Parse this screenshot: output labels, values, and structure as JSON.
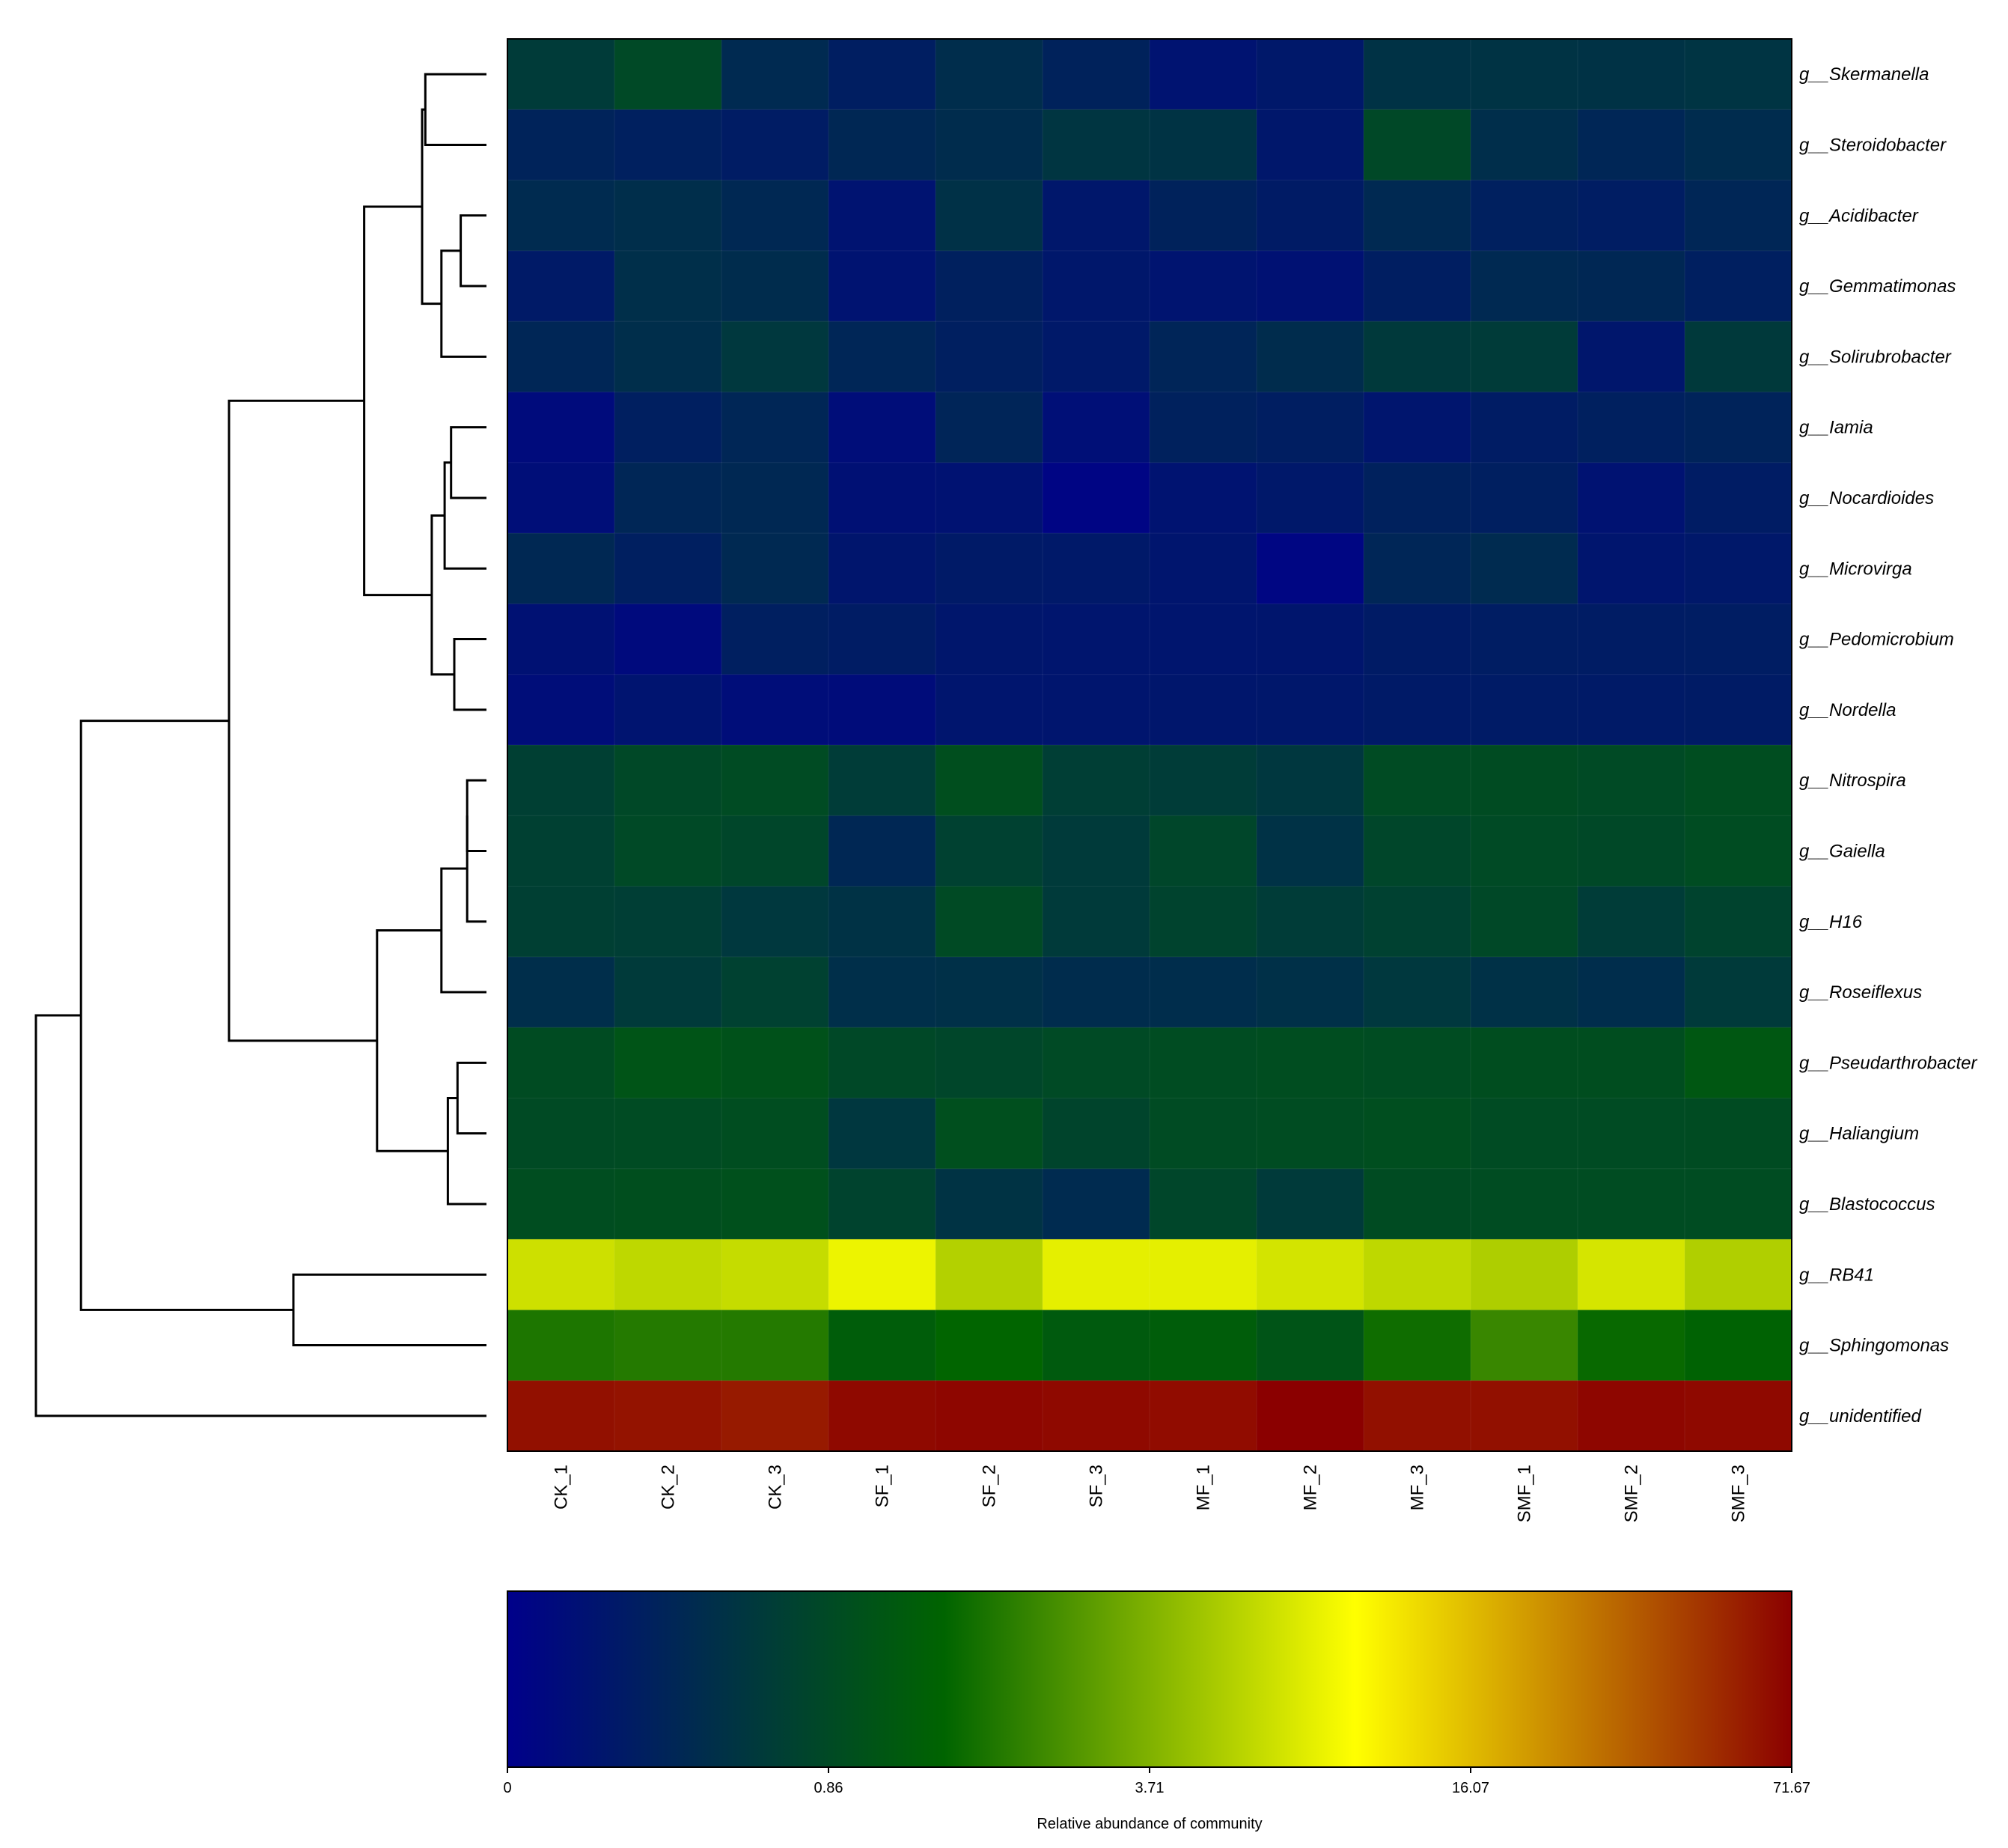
{
  "chart_data": {
    "type": "heatmap",
    "columns": [
      "CK_1",
      "CK_2",
      "CK_3",
      "SF_1",
      "SF_2",
      "SF_3",
      "MF_1",
      "MF_2",
      "MF_3",
      "SMF_1",
      "SMF_2",
      "SMF_3"
    ],
    "rows": [
      "g__Skermanella",
      "g__Steroidobacter",
      "g__Acidibacter",
      "g__Gemmatimonas",
      "g__Solirubrobacter",
      "g__Iamia",
      "g__Nocardioides",
      "g__Microvirga",
      "g__Pedomicrobium",
      "g__Nordella",
      "g__Nitrospira",
      "g__Gaiella",
      "g__H16",
      "g__Roseiflexus",
      "g__Pseudarthrobacter",
      "g__Haliangium",
      "g__Blastococcus",
      "g__RB41",
      "g__Sphingomonas",
      "g__unidentified"
    ],
    "values": [
      [
        0.69,
        0.85,
        0.49,
        0.35,
        0.53,
        0.4,
        0.22,
        0.28,
        0.59,
        0.6,
        0.59,
        0.61
      ],
      [
        0.41,
        0.37,
        0.33,
        0.46,
        0.52,
        0.62,
        0.6,
        0.27,
        0.84,
        0.54,
        0.45,
        0.51
      ],
      [
        0.5,
        0.54,
        0.47,
        0.22,
        0.57,
        0.27,
        0.4,
        0.32,
        0.48,
        0.37,
        0.34,
        0.45
      ],
      [
        0.3,
        0.55,
        0.52,
        0.22,
        0.38,
        0.27,
        0.23,
        0.2,
        0.35,
        0.48,
        0.46,
        0.36
      ],
      [
        0.45,
        0.54,
        0.65,
        0.44,
        0.36,
        0.29,
        0.43,
        0.52,
        0.67,
        0.69,
        0.26,
        0.67
      ],
      [
        0.13,
        0.36,
        0.45,
        0.15,
        0.43,
        0.17,
        0.39,
        0.35,
        0.24,
        0.33,
        0.37,
        0.41
      ],
      [
        0.16,
        0.45,
        0.47,
        0.19,
        0.21,
        0.06,
        0.22,
        0.28,
        0.39,
        0.36,
        0.21,
        0.33
      ],
      [
        0.47,
        0.36,
        0.48,
        0.25,
        0.3,
        0.29,
        0.24,
        0.07,
        0.44,
        0.5,
        0.24,
        0.28
      ],
      [
        0.2,
        0.12,
        0.36,
        0.33,
        0.26,
        0.24,
        0.24,
        0.25,
        0.32,
        0.34,
        0.33,
        0.34
      ],
      [
        0.15,
        0.23,
        0.15,
        0.14,
        0.24,
        0.24,
        0.26,
        0.27,
        0.3,
        0.31,
        0.3,
        0.32
      ],
      [
        0.74,
        0.84,
        0.9,
        0.7,
        1.05,
        0.72,
        0.7,
        0.64,
        0.9,
        0.93,
        0.86,
        0.98
      ],
      [
        0.75,
        0.85,
        0.82,
        0.46,
        0.76,
        0.68,
        0.82,
        0.58,
        0.82,
        0.86,
        0.84,
        0.95
      ],
      [
        0.74,
        0.72,
        0.65,
        0.59,
        0.88,
        0.68,
        0.78,
        0.7,
        0.76,
        0.84,
        0.7,
        0.78
      ],
      [
        0.54,
        0.68,
        0.76,
        0.55,
        0.56,
        0.52,
        0.53,
        0.56,
        0.65,
        0.57,
        0.53,
        0.68
      ],
      [
        0.93,
        1.25,
        1.15,
        0.84,
        0.82,
        0.86,
        0.95,
        1.0,
        0.95,
        1.01,
        1.01,
        1.38
      ],
      [
        0.88,
        0.9,
        0.98,
        0.64,
        1.06,
        0.8,
        0.9,
        0.95,
        1.03,
        0.9,
        0.92,
        0.93
      ],
      [
        0.98,
        1.05,
        1.1,
        0.78,
        0.6,
        0.5,
        0.82,
        0.68,
        0.93,
        0.95,
        0.95,
        0.95
      ],
      [
        8.5,
        7.6,
        8.0,
        10.5,
        6.9,
        10.0,
        10.0,
        8.9,
        7.6,
        6.6,
        9.0,
        6.7
      ],
      [
        2.3,
        2.4,
        2.4,
        1.6,
        1.9,
        1.5,
        1.6,
        1.25,
        2.1,
        2.7,
        2.0,
        1.8
      ],
      [
        67.0,
        66.0,
        64.0,
        69.0,
        70.0,
        69.0,
        68.0,
        71.67,
        67.0,
        67.0,
        70.0,
        69.0
      ]
    ],
    "color_scale": {
      "label": "Relative abundance of community",
      "ticks": [
        "0",
        "0.86",
        "3.71",
        "16.07",
        "71.67"
      ],
      "stops": [
        "#00008b",
        "#006400",
        "#ffff00",
        "#8b0000"
      ],
      "domain": [
        0,
        71.67
      ]
    },
    "row_dendrogram": {
      "nodes": [
        {
          "a": 0,
          "b": 1,
          "h": 0.095
        },
        {
          "a": 2,
          "b": 3,
          "h": 0.04
        },
        {
          "a": "n1",
          "b": 4,
          "h": 0.07
        },
        {
          "a": "n0",
          "b": "n2",
          "h": 0.1
        },
        {
          "a": 5,
          "b": 6,
          "h": 0.055
        },
        {
          "a": "n4",
          "b": 7,
          "h": 0.065
        },
        {
          "a": 8,
          "b": 9,
          "h": 0.05
        },
        {
          "a": "n5",
          "b": "n6",
          "h": 0.085
        },
        {
          "a": "n3",
          "b": "n7",
          "h": 0.19
        },
        {
          "a": 10,
          "b": 11,
          "h": 0.03
        },
        {
          "a": "n9",
          "b": 12,
          "h": 0.03
        },
        {
          "a": "n10",
          "b": 13,
          "h": 0.07
        },
        {
          "a": 14,
          "b": 15,
          "h": 0.045
        },
        {
          "a": "n12",
          "b": 16,
          "h": 0.06
        },
        {
          "a": "n11",
          "b": "n13",
          "h": 0.17
        },
        {
          "a": "n8",
          "b": "n14",
          "h": 0.4
        },
        {
          "a": 17,
          "b": 18,
          "h": 0.3
        },
        {
          "a": "n15",
          "b": "n16",
          "h": 0.63
        },
        {
          "a": "n17",
          "b": 19,
          "h": 0.7
        }
      ]
    }
  }
}
